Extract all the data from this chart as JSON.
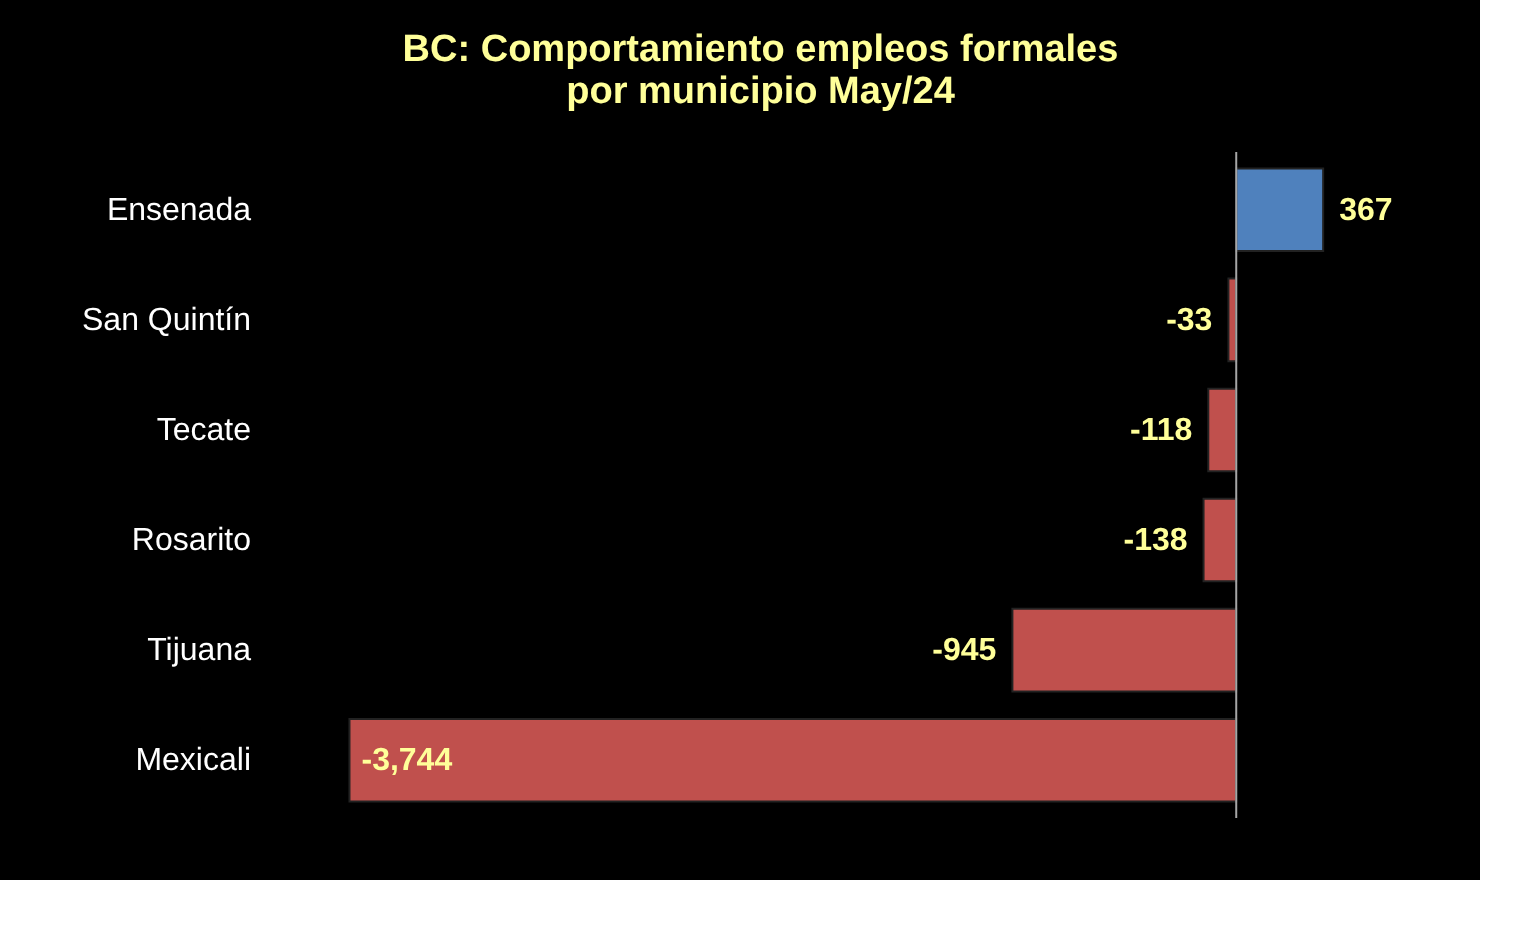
{
  "chart_data": {
    "type": "bar",
    "orientation": "horizontal",
    "title": "BC:  Comportamiento empleos formales\npor municipio  May/24",
    "categories": [
      "Ensenada",
      "San Quintín",
      "Tecate",
      "Rosarito",
      "Tijuana",
      "Mexicali"
    ],
    "values": [
      367,
      -33,
      -118,
      -138,
      -945,
      -3744
    ],
    "colors": [
      "#4f81bd",
      "#c0504d",
      "#c0504d",
      "#c0504d",
      "#c0504d",
      "#c0504d"
    ],
    "value_labels": [
      "367",
      "-33",
      "-118",
      "-138",
      "-945",
      "-3,744"
    ]
  }
}
